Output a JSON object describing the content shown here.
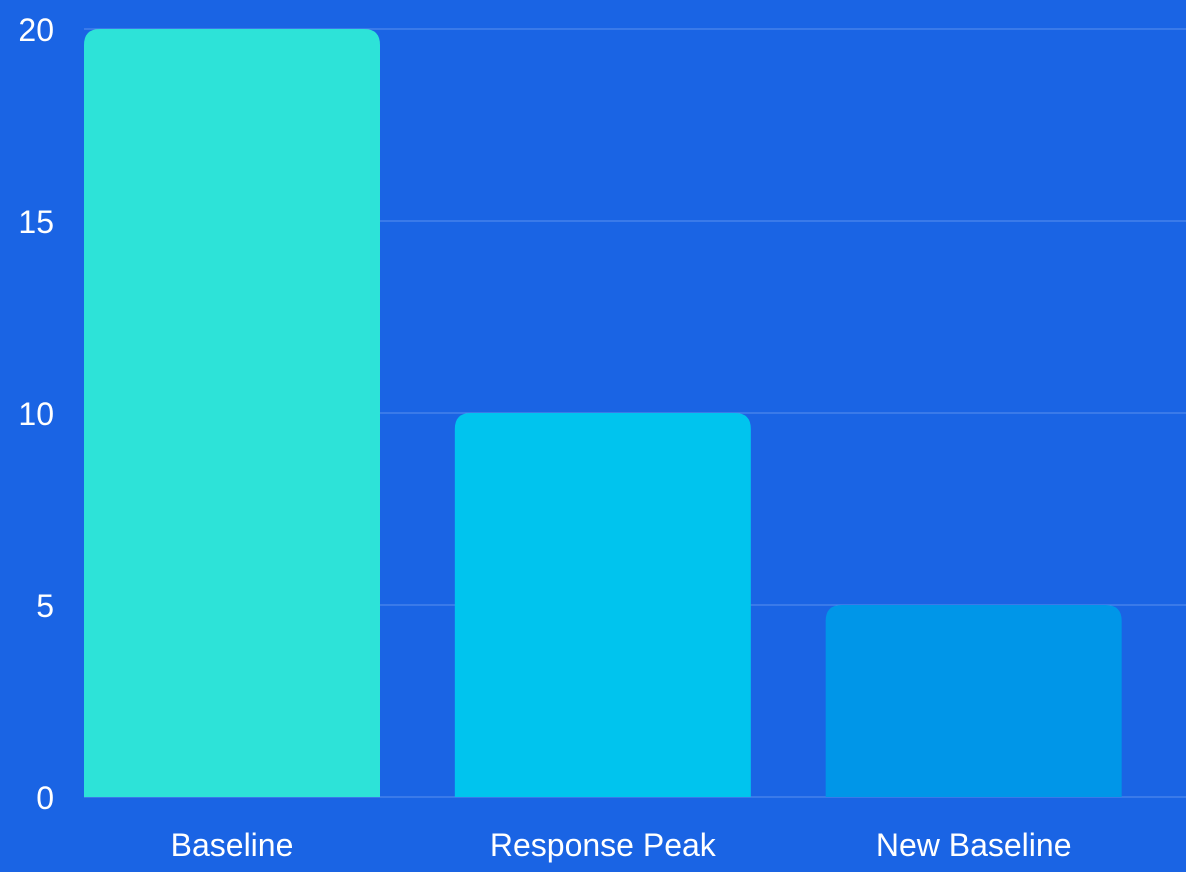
{
  "colors": {
    "background": "#1a64e4",
    "gridline": "#5b8fee",
    "axis_text": "#ffffff",
    "bars": [
      "#2de3d8",
      "#00c4ee",
      "#0096e8"
    ]
  },
  "chart_data": {
    "type": "bar",
    "title": "",
    "xlabel": "",
    "ylabel": "",
    "categories": [
      "Baseline",
      "Response Peak",
      "New Baseline"
    ],
    "values": [
      20,
      10,
      5
    ],
    "ylim": [
      0,
      20
    ],
    "yticks": [
      "0",
      "5",
      "10",
      "15",
      "20"
    ],
    "grid": true,
    "legend": "none"
  }
}
